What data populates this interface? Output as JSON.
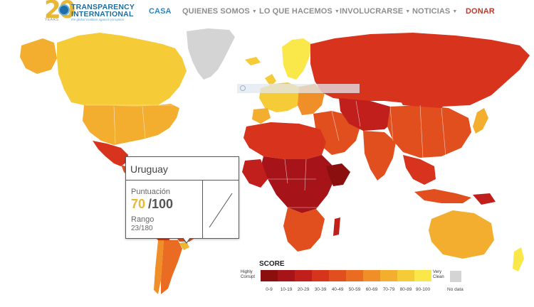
{
  "header": {
    "logo": {
      "number": "20",
      "years": "YEARS",
      "name_line1": "TRANSPARENCY",
      "name_line2": "INTERNATIONAL",
      "tagline": "the global coalition against corruption"
    },
    "nav": [
      {
        "label": "CASA",
        "active": true,
        "dropdown": false
      },
      {
        "label": "QUIENES SOMOS",
        "active": false,
        "dropdown": true
      },
      {
        "label": "LO QUE HACEMOS",
        "active": false,
        "dropdown": true
      },
      {
        "label": "INVOLUCRARSE",
        "active": false,
        "dropdown": true
      },
      {
        "label": "NOTICIAS",
        "active": false,
        "dropdown": true
      },
      {
        "label": "DONAR",
        "active": false,
        "dropdown": false
      }
    ]
  },
  "tooltip": {
    "country": "Uruguay",
    "score_label": "Puntuación",
    "score": "70",
    "score_max": "/100",
    "rank_label": "Rango",
    "rank": "23/180",
    "trend_icon": "trend-line-icon"
  },
  "legend": {
    "title": "SCORE",
    "left_label_1": "Highly",
    "left_label_2": "Corrupt",
    "right_label_1": "Very",
    "right_label_2": "Clean",
    "ranges": [
      "0-9",
      "10-19",
      "20-29",
      "30-39",
      "40-49",
      "50-59",
      "60-69",
      "70-79",
      "80-89",
      "90-100"
    ],
    "colors": [
      "#8b0f0f",
      "#a6141a",
      "#c01f1c",
      "#d8341d",
      "#e24f1f",
      "#ea6c22",
      "#f08e27",
      "#f3ae2f",
      "#f6cb38",
      "#fae74a"
    ],
    "nodata_label": "No data",
    "nodata_color": "#d4d4d4"
  },
  "map": {
    "highlighted_country": "Uruguay",
    "highlight_color": "#e8b733"
  }
}
